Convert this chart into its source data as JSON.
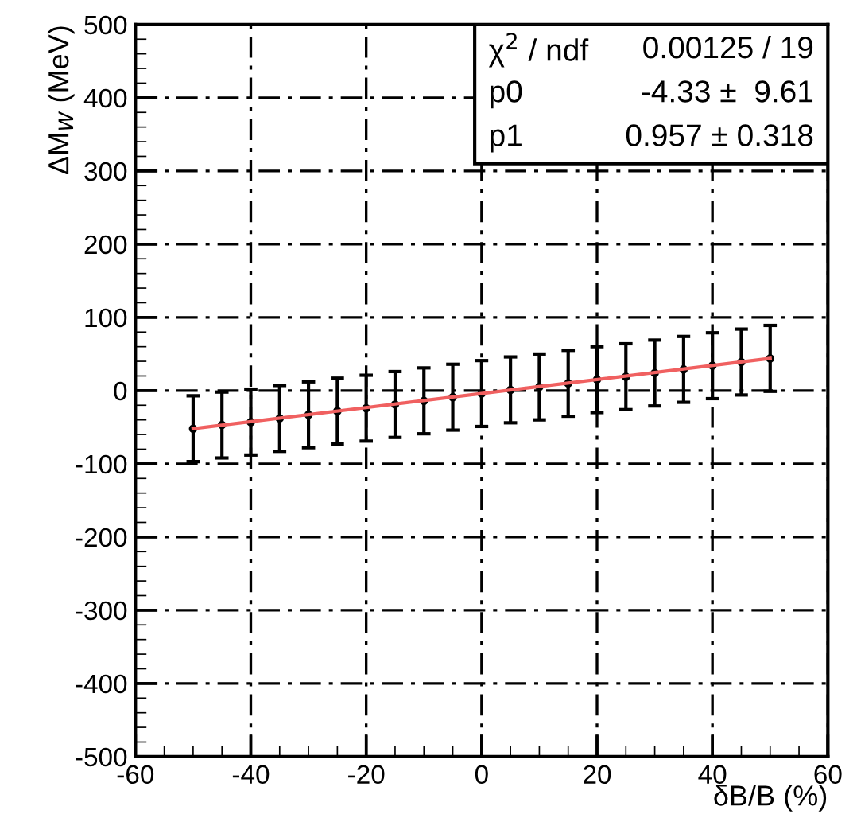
{
  "chart_data": {
    "type": "scatter",
    "xlabel": "δB/B (%)",
    "ylabel": "ΔM$_{W}$ (MeV)",
    "xlim": [
      -60,
      60
    ],
    "xticks": [
      -60,
      -40,
      -20,
      0,
      20,
      40,
      60
    ],
    "ylim": [
      -500,
      500
    ],
    "yticks": [
      -500,
      -400,
      -300,
      -200,
      -100,
      0,
      100,
      200,
      300,
      400,
      500
    ],
    "grid": true,
    "series": [
      {
        "marker": "circle",
        "color": "#000000",
        "x": [
          -50,
          -45,
          -40,
          -35,
          -30,
          -25,
          -20,
          -15,
          -10,
          -5,
          0,
          5,
          10,
          15,
          20,
          25,
          30,
          35,
          40,
          45,
          50
        ],
        "values": [
          -52,
          -47,
          -43,
          -38,
          -33,
          -28,
          -24,
          -19,
          -14,
          -9,
          -4,
          1,
          5,
          10,
          15,
          19,
          24,
          29,
          34,
          39,
          44
        ],
        "errors": [
          45,
          45,
          45,
          45,
          45,
          45,
          45,
          45,
          45,
          45,
          45,
          45,
          45,
          45,
          45,
          45,
          45,
          45,
          45,
          45,
          45
        ]
      },
      {
        "type": "line",
        "color": "#f06060",
        "x": [
          -50,
          50
        ],
        "values": [
          -52,
          44
        ]
      }
    ],
    "annotations": [
      "χ$^{2}$ / ndf",
      "0.00125 / 19",
      "p0",
      "-4.33 ±  9.61",
      "p1",
      "0.957 ± 0.318"
    ]
  }
}
